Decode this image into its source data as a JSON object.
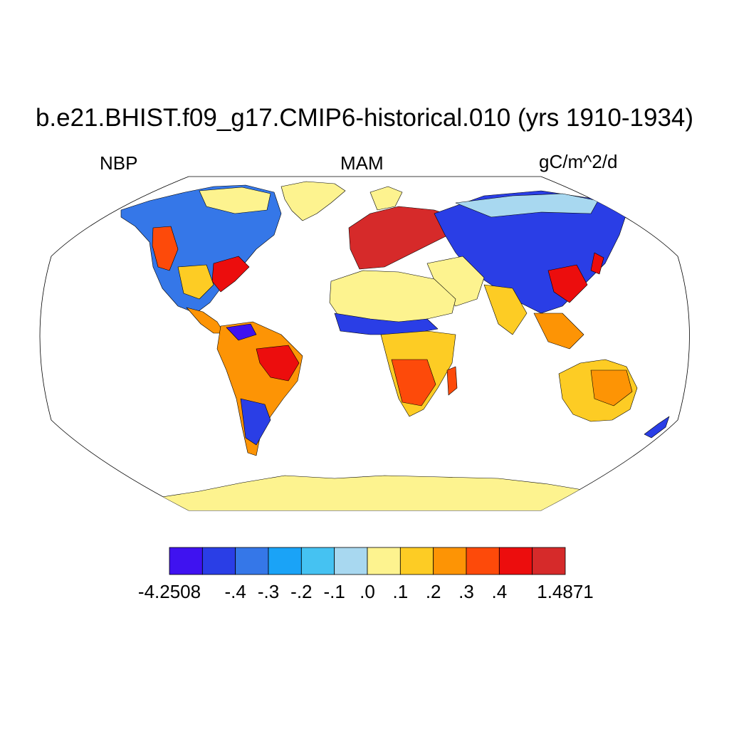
{
  "header": {
    "title": "b.e21.BHIST.f09_g17.CMIP6-historical.010 (yrs 1910-1934)",
    "left_label": "NBP",
    "center_label": "MAM",
    "right_label": "gC/m^2/d"
  },
  "map": {
    "projection": "Robinson",
    "variable": "NBP",
    "season": "MAM",
    "units": "gC/m^2/d"
  },
  "colorbar": {
    "labels": [
      "-4.2508",
      "-.4",
      "-.3",
      "-.2",
      "-.1",
      ".0",
      ".1",
      ".2",
      ".3",
      ".4",
      "1.4871"
    ],
    "colors": [
      "#3f12f0",
      "#2a3ee6",
      "#3577e8",
      "#1aa3f7",
      "#45c2f2",
      "#a8d8f0",
      "#fdf38f",
      "#fdcc24",
      "#fd9405",
      "#fd4a0a",
      "#ec0d0d",
      "#d62a2a"
    ],
    "min": -4.2508,
    "max": 1.4871
  }
}
